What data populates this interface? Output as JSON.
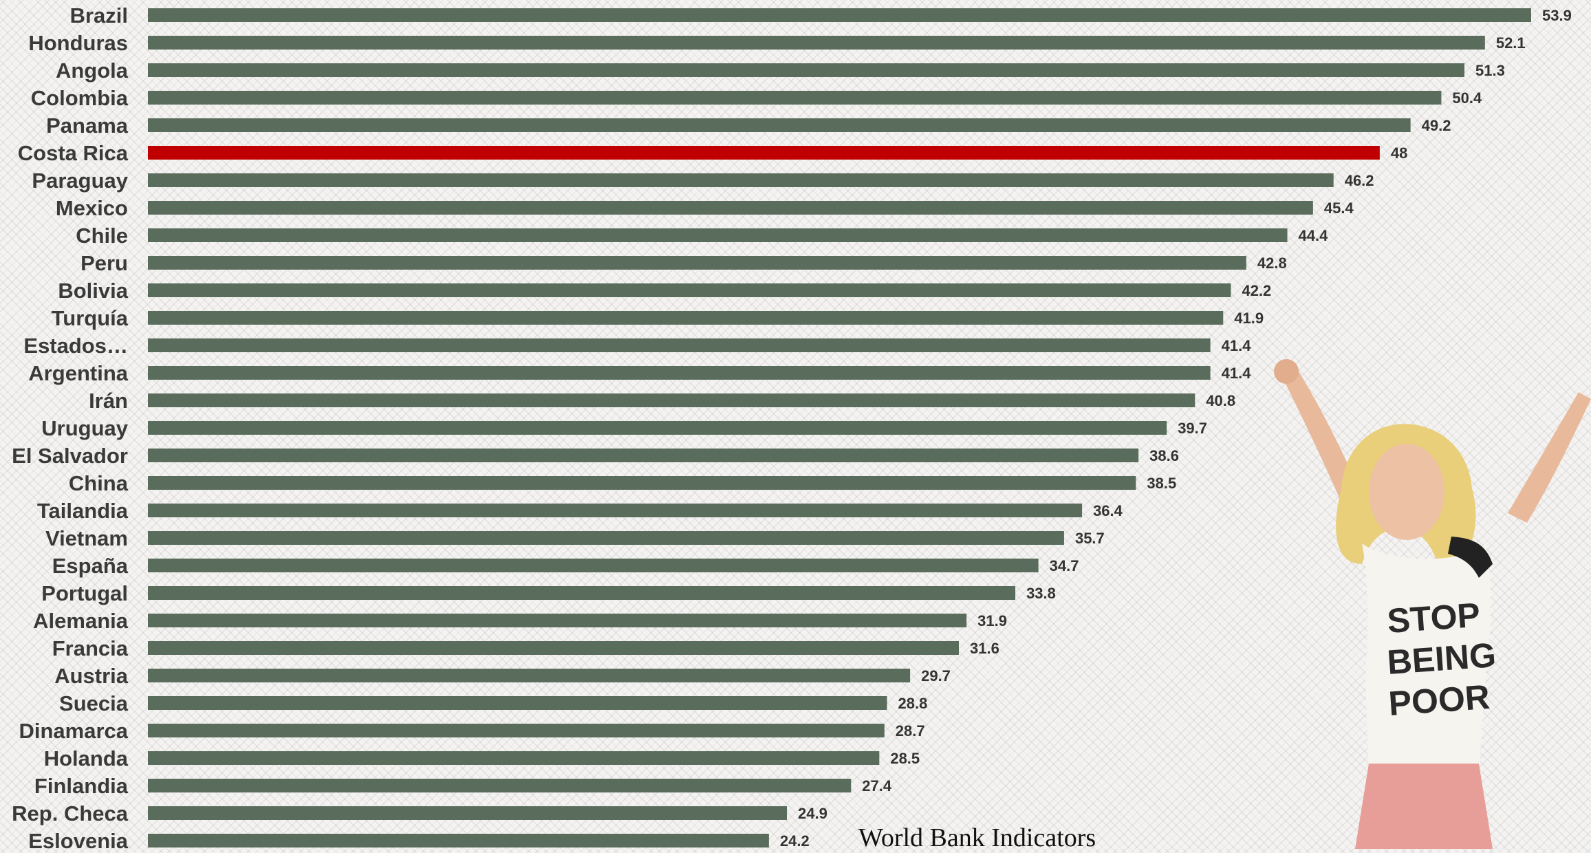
{
  "chart_data": {
    "type": "bar",
    "orientation": "horizontal",
    "categories": [
      "Brazil",
      "Honduras",
      "Angola",
      "Colombia",
      "Panama",
      "Costa Rica",
      "Paraguay",
      "Mexico",
      "Chile",
      "Peru",
      "Bolivia",
      "Turquía",
      "Estados…",
      "Argentina",
      "Irán",
      "Uruguay",
      "El Salvador",
      "China",
      "Tailandia",
      "Vietnam",
      "España",
      "Portugal",
      "Alemania",
      "Francia",
      "Austria",
      "Suecia",
      "Dinamarca",
      "Holanda",
      "Finlandia",
      "Rep. Checa",
      "Eslovenia"
    ],
    "values": [
      53.9,
      52.1,
      51.3,
      50.4,
      49.2,
      48,
      46.2,
      45.4,
      44.4,
      42.8,
      42.2,
      41.9,
      41.4,
      41.4,
      40.8,
      39.7,
      38.6,
      38.5,
      36.4,
      35.7,
      34.7,
      33.8,
      31.9,
      31.6,
      29.7,
      28.8,
      28.7,
      28.5,
      27.4,
      24.9,
      24.2
    ],
    "value_labels": [
      "53.9",
      "52.1",
      "51.3",
      "50.4",
      "49.2",
      "48",
      "46.2",
      "45.4",
      "44.4",
      "42.8",
      "42.2",
      "41.9",
      "41.4",
      "41.4",
      "40.8",
      "39.7",
      "38.6",
      "38.5",
      "36.4",
      "35.7",
      "34.7",
      "33.8",
      "31.9",
      "31.6",
      "29.7",
      "28.8",
      "28.7",
      "28.5",
      "27.4",
      "24.9",
      "24.2"
    ],
    "highlight": "Costa Rica",
    "xlim": [
      0,
      53.9
    ],
    "grid": false,
    "legend": "none",
    "colors": {
      "bar": "#5a6d5c",
      "highlight": "#c00000",
      "label": "#3a3a3a",
      "value_label": "#333333"
    }
  },
  "source": "World Bank Indicators",
  "decoration": {
    "shirt_text": [
      "STOP",
      "BEING",
      "POOR"
    ]
  }
}
